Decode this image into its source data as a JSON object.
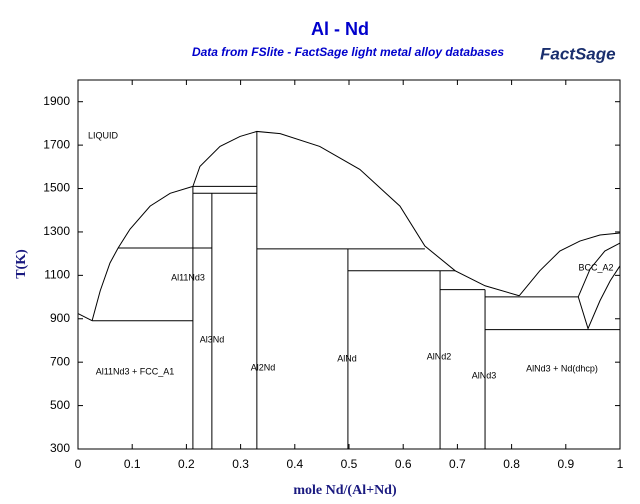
{
  "chart_data": {
    "type": "phase-diagram",
    "title": "Al - Nd",
    "subtitle": "Data from FSlite - FactSage light metal alloy databases",
    "logo": "FactSage",
    "xlabel": "mole Nd/(Al+Nd)",
    "ylabel": "T(K)",
    "xlim": [
      0,
      1
    ],
    "ylim": [
      300,
      2000
    ],
    "xticks": [
      0,
      0.1,
      0.2,
      0.3,
      0.4,
      0.5,
      0.6,
      0.7,
      0.8,
      0.9,
      1
    ],
    "yticks": [
      300,
      500,
      700,
      900,
      1100,
      1300,
      1500,
      1700,
      1900
    ],
    "grid": false,
    "line_color": "#000000",
    "title_color": "#0000cc",
    "region_labels": [
      "LIQUID",
      "Al11Nd3",
      "Al3Nd",
      "Al2Nd",
      "AlNd",
      "AlNd2",
      "AlNd3",
      "Al11Nd3 + FCC_A1",
      "AlNd3 + Nd(dhcp)",
      "BCC_A2"
    ],
    "boundaries": [
      {
        "x": [
          0,
          0.026
        ],
        "y": [
          924,
          891
        ]
      },
      {
        "x": [
          0.026,
          0.041,
          0.059,
          0.074,
          0.096,
          0.133,
          0.17,
          0.212
        ],
        "y": [
          891,
          1029,
          1157,
          1226,
          1313,
          1419,
          1478,
          1510
        ]
      },
      {
        "x": [
          0.026,
          0.212
        ],
        "y": [
          891,
          891
        ]
      },
      {
        "x": [
          0.074,
          0.247
        ],
        "y": [
          1226,
          1226
        ]
      },
      {
        "x": [
          0.212,
          0.212
        ],
        "y": [
          1510,
          300
        ]
      },
      {
        "x": [
          0.247,
          0.247
        ],
        "y": [
          1478,
          300
        ]
      },
      {
        "x": [
          0.212,
          0.33
        ],
        "y": [
          1510,
          1510
        ]
      },
      {
        "x": [
          0.212,
          0.33
        ],
        "y": [
          1478,
          1478
        ]
      },
      {
        "x": [
          0.212,
          0.225,
          0.262,
          0.299,
          0.33,
          0.373,
          0.446,
          0.52,
          0.594,
          0.64,
          0.696,
          0.751,
          0.814
        ],
        "y": [
          1510,
          1602,
          1694,
          1740,
          1763,
          1753,
          1694,
          1588,
          1419,
          1235,
          1121,
          1052,
          1006
        ]
      },
      {
        "x": [
          0.33,
          0.33
        ],
        "y": [
          1763,
          300
        ]
      },
      {
        "x": [
          0.33,
          0.64
        ],
        "y": [
          1222,
          1222
        ]
      },
      {
        "x": [
          0.498,
          0.498
        ],
        "y": [
          1222,
          300
        ]
      },
      {
        "x": [
          0.498,
          0.696
        ],
        "y": [
          1121,
          1121
        ]
      },
      {
        "x": [
          0.668,
          0.668
        ],
        "y": [
          1121,
          300
        ]
      },
      {
        "x": [
          0.668,
          0.751
        ],
        "y": [
          1034,
          1034
        ]
      },
      {
        "x": [
          0.751,
          0.751
        ],
        "y": [
          1034,
          300
        ]
      },
      {
        "x": [
          0.751,
          0.923
        ],
        "y": [
          1001,
          1001
        ]
      },
      {
        "x": [
          0.751,
          1
        ],
        "y": [
          850,
          850
        ]
      },
      {
        "x": [
          0.814,
          0.852,
          0.889,
          0.926,
          0.963,
          1
        ],
        "y": [
          1006,
          1121,
          1212,
          1258,
          1286,
          1295
        ]
      },
      {
        "x": [
          0.923,
          0.945,
          0.972,
          1
        ],
        "y": [
          1001,
          1130,
          1212,
          1249
        ]
      },
      {
        "x": [
          0.923,
          0.941,
          0.963,
          0.982,
          1
        ],
        "y": [
          1001,
          855,
          983,
          1075,
          1144
        ]
      }
    ]
  }
}
